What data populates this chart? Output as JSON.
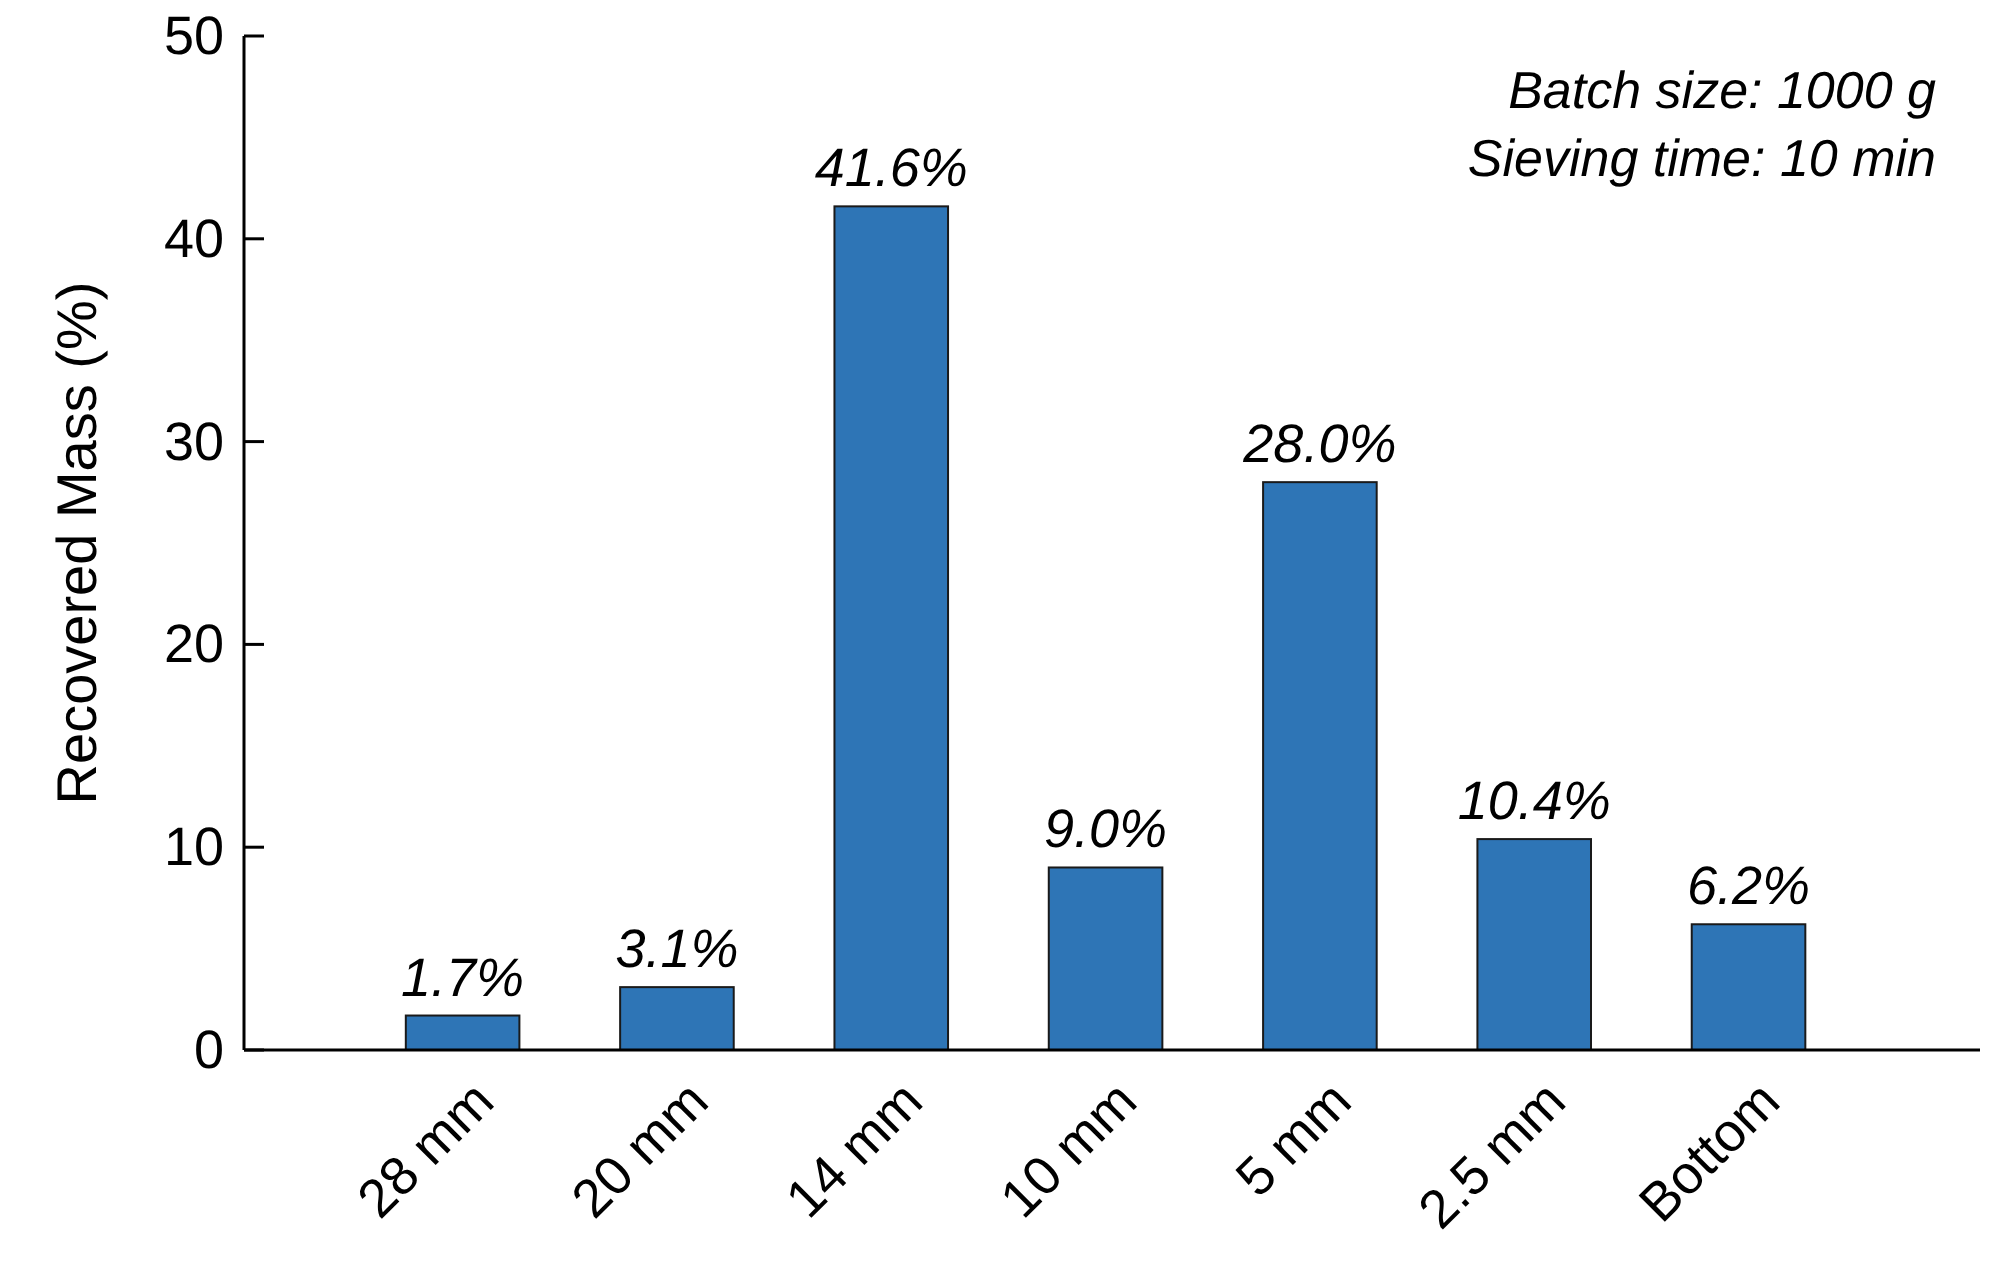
{
  "chart_data": {
    "type": "bar",
    "ylabel": "Recovered Mass (%)",
    "categories": [
      "28 mm",
      "20 mm",
      "14 mm",
      "10 mm",
      "5 mm",
      "2.5 mm",
      "Bottom"
    ],
    "values": [
      1.7,
      3.1,
      41.6,
      9.0,
      28.0,
      10.4,
      6.2
    ],
    "value_labels": [
      "1.7%",
      "3.1%",
      "41.6%",
      "9.0%",
      "28.0%",
      "10.4%",
      "6.2%"
    ],
    "color": "#2e75b6",
    "ylim": [
      0,
      50
    ],
    "yticks": [
      0,
      10,
      20,
      30,
      40,
      50
    ],
    "grid": false,
    "annotations": [
      "Batch size: 1000 g",
      "Sieving time: 10 min"
    ]
  }
}
